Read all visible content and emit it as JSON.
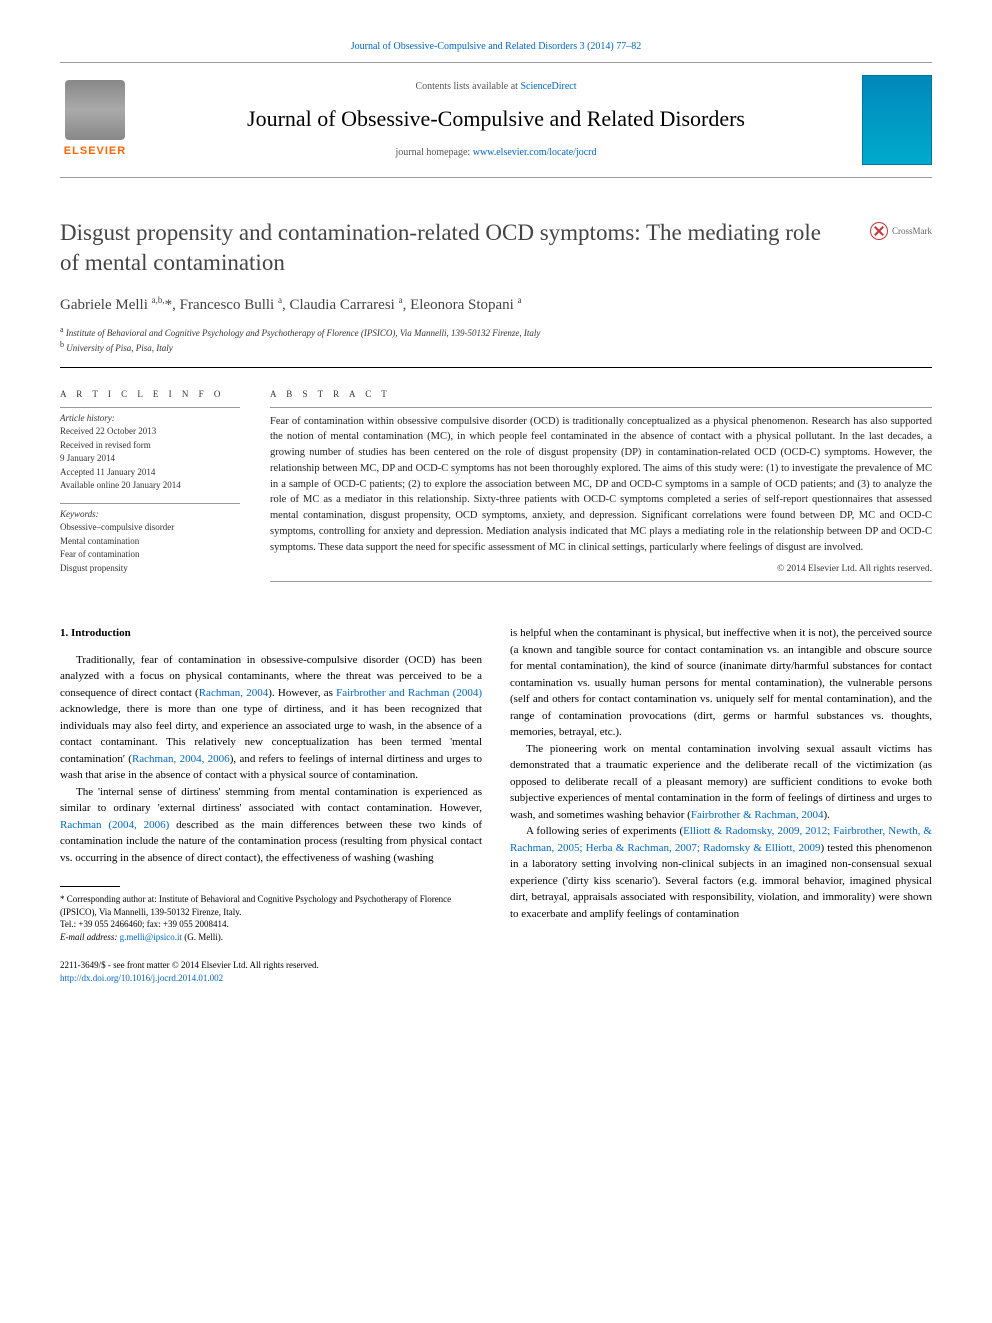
{
  "colors": {
    "link": "#0066cc",
    "elsevier_orange": "#ff6600",
    "text": "#000000",
    "muted": "#555555",
    "title_gray": "#444444",
    "rule": "#999999"
  },
  "typography": {
    "body_family": "Georgia, 'Times New Roman', serif",
    "title_size_pt": 23,
    "journal_size_pt": 22,
    "abstract_size_pt": 10.5,
    "body_size_pt": 11,
    "footnote_size_pt": 9
  },
  "top_citation": "Journal of Obsessive-Compulsive and Related Disorders 3 (2014) 77–82",
  "header": {
    "contents_prefix": "Contents lists available at ",
    "contents_link": "ScienceDirect",
    "journal_name": "Journal of Obsessive-Compulsive and Related Disorders",
    "homepage_prefix": "journal homepage: ",
    "homepage_url": "www.elsevier.com/locate/jocrd",
    "publisher_name": "ELSEVIER"
  },
  "crossmark_label": "CrossMark",
  "title": "Disgust propensity and contamination-related OCD symptoms: The mediating role of mental contamination",
  "authors_html": "Gabriele Melli <sup>a,b,</sup>*, Francesco Bulli <sup>a</sup>, Claudia Carraresi <sup>a</sup>, Eleonora Stopani <sup>a</sup>",
  "affiliations": [
    "a Institute of Behavioral and Cognitive Psychology and Psychotherapy of Florence (IPSICO), Via Mannelli, 139-50132 Firenze, Italy",
    "b University of Pisa, Pisa, Italy"
  ],
  "article_info": {
    "heading": "A R T I C L E  I N F O",
    "history_label": "Article history:",
    "history": [
      "Received 22 October 2013",
      "Received in revised form",
      "9 January 2014",
      "Accepted 11 January 2014",
      "Available online 20 January 2014"
    ],
    "keywords_label": "Keywords:",
    "keywords": [
      "Obsessive–compulsive disorder",
      "Mental contamination",
      "Fear of contamination",
      "Disgust propensity"
    ]
  },
  "abstract": {
    "heading": "A B S T R A C T",
    "body": "Fear of contamination within obsessive compulsive disorder (OCD) is traditionally conceptualized as a physical phenomenon. Research has also supported the notion of mental contamination (MC), in which people feel contaminated in the absence of contact with a physical pollutant. In the last decades, a growing number of studies has been centered on the role of disgust propensity (DP) in contamination-related OCD (OCD-C) symptoms. However, the relationship between MC, DP and OCD-C symptoms has not been thoroughly explored. The aims of this study were: (1) to investigate the prevalence of MC in a sample of OCD-C patients; (2) to explore the association between MC, DP and OCD-C symptoms in a sample of OCD patients; and (3) to analyze the role of MC as a mediator in this relationship. Sixty-three patients with OCD-C symptoms completed a series of self-report questionnaires that assessed mental contamination, disgust propensity, OCD symptoms, anxiety, and depression. Significant correlations were found between DP, MC and OCD-C symptoms, controlling for anxiety and depression. Mediation analysis indicated that MC plays a mediating role in the relationship between DP and OCD-C symptoms. These data support the need for specific assessment of MC in clinical settings, particularly where feelings of disgust are involved.",
    "copyright": "© 2014 Elsevier Ltd. All rights reserved."
  },
  "body": {
    "section_heading": "1.  Introduction",
    "left_paragraphs": [
      "Traditionally, fear of contamination in obsessive-compulsive disorder (OCD) has been analyzed with a focus on physical contaminants, where the threat was perceived to be a consequence of direct contact (<span class=\"cite\">Rachman, 2004</span>). However, as <span class=\"cite\">Fairbrother and Rachman (2004)</span> acknowledge, there is more than one type of dirtiness, and it has been recognized that individuals may also feel dirty, and experience an associated urge to wash, in the absence of a contact contaminant. This relatively new conceptualization has been termed 'mental contamination' (<span class=\"cite\">Rachman, 2004, 2006</span>), and refers to feelings of internal dirtiness and urges to wash that arise in the absence of contact with a physical source of contamination.",
      "The 'internal sense of dirtiness' stemming from mental contamination is experienced as similar to ordinary 'external dirtiness' associated with contact contamination. However, <span class=\"cite\">Rachman (2004, 2006)</span> described as the main differences between these two kinds of contamination include the nature of the contamination process (resulting from physical contact vs. occurring in the absence of direct contact), the effectiveness of washing (washing"
    ],
    "right_paragraphs": [
      "is helpful when the contaminant is physical, but ineffective when it is not), the perceived source (a known and tangible source for contact contamination vs. an intangible and obscure source for mental contamination), the kind of source (inanimate dirty/harmful substances for contact contamination vs. usually human persons for mental contamination), the vulnerable persons (self and others for contact contamination vs. uniquely self for mental contamination), and the range of contamination provocations (dirt, germs or harmful substances vs. thoughts, memories, betrayal, etc.).",
      "The pioneering work on mental contamination involving sexual assault victims has demonstrated that a traumatic experience and the deliberate recall of the victimization (as opposed to deliberate recall of a pleasant memory) are sufficient conditions to evoke both subjective experiences of mental contamination in the form of feelings of dirtiness and urges to wash, and sometimes washing behavior (<span class=\"cite\">Fairbrother & Rachman, 2004</span>).",
      "A following series of experiments (<span class=\"cite\">Elliott & Radomsky, 2009, 2012; Fairbrother, Newth, & Rachman, 2005; Herba & Rachman, 2007; Radomsky & Elliott, 2009</span>) tested this phenomenon in a laboratory setting involving non-clinical subjects in an imagined non-consensual sexual experience ('dirty kiss scenario'). Several factors (e.g. immoral behavior, imagined physical dirt, betrayal, appraisals associated with responsibility, violation, and immorality) were shown to exacerbate and amplify feelings of contamination"
    ]
  },
  "footnote": {
    "corr_label": "* Corresponding author at: Institute of Behavioral and Cognitive Psychology and Psychotherapy of Florence (IPSICO), Via Mannelli, 139-50132 Firenze, Italy.",
    "tel": "Tel.: +39 055 2466460; fax: +39 055 2008414.",
    "email_label": "E-mail address: ",
    "email": "g.melli@ipsico.it",
    "email_author": " (G. Melli)."
  },
  "footer": {
    "issn": "2211-3649/$ - see front matter © 2014 Elsevier Ltd. All rights reserved.",
    "doi": "http://dx.doi.org/10.1016/j.jocrd.2014.01.002"
  }
}
